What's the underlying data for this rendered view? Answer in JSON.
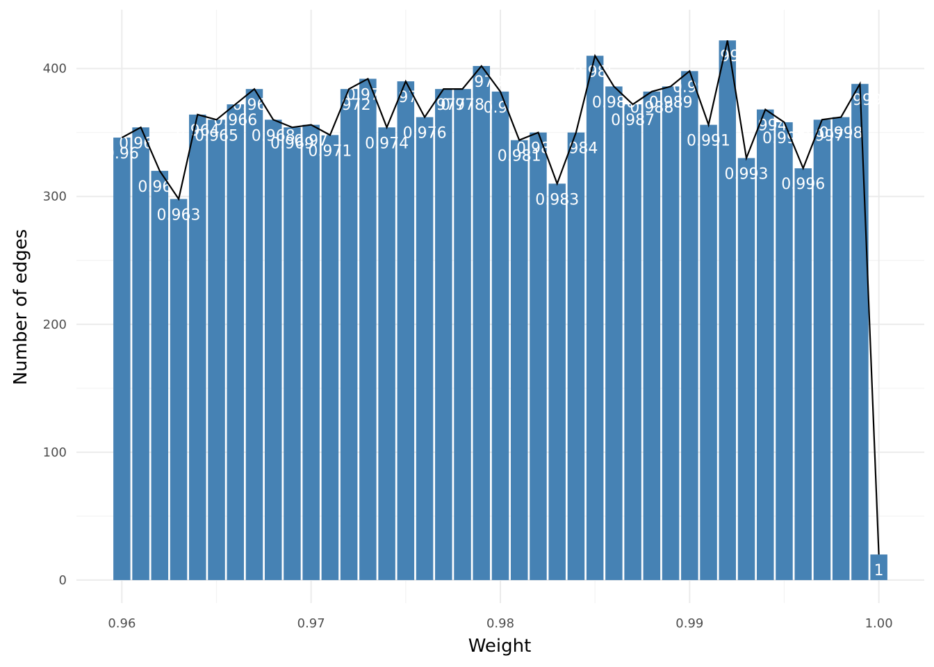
{
  "chart_data": {
    "type": "bar",
    "title": "",
    "xlabel": "Weight",
    "ylabel": "Number of edges",
    "xlim": [
      0.9576,
      1.0024
    ],
    "ylim": [
      -18,
      446
    ],
    "x_ticks": [
      0.96,
      0.97,
      0.98,
      0.99,
      1.0
    ],
    "x_tick_labels": [
      "0.96",
      "0.97",
      "0.98",
      "0.99",
      "1.00"
    ],
    "y_ticks": [
      0,
      100,
      200,
      300,
      400
    ],
    "y_tick_labels": [
      "0",
      "100",
      "200",
      "300",
      "400"
    ],
    "grid": true,
    "bar_color": "#4682b4",
    "line_color": "#000000",
    "x": [
      0.96,
      0.961,
      0.962,
      0.963,
      0.964,
      0.965,
      0.966,
      0.967,
      0.968,
      0.969,
      0.97,
      0.971,
      0.972,
      0.973,
      0.974,
      0.975,
      0.976,
      0.977,
      0.978,
      0.979,
      0.98,
      0.981,
      0.982,
      0.983,
      0.984,
      0.985,
      0.986,
      0.987,
      0.988,
      0.989,
      0.99,
      0.991,
      0.992,
      0.993,
      0.994,
      0.995,
      0.996,
      0.997,
      0.998,
      0.999,
      1.0
    ],
    "values": [
      346,
      354,
      320,
      298,
      364,
      360,
      372,
      384,
      360,
      354,
      356,
      348,
      384,
      392,
      354,
      390,
      362,
      384,
      384,
      402,
      382,
      344,
      350,
      310,
      350,
      410,
      386,
      372,
      382,
      386,
      398,
      356,
      422,
      330,
      368,
      358,
      322,
      360,
      362,
      388,
      20
    ],
    "labels": [
      "0.96",
      "0.961",
      "0.962",
      "0.963",
      "0.964",
      "0.965",
      "0.966",
      "0.967",
      "0.968",
      "0.969",
      "0.97",
      "0.971",
      "0.972",
      "0.973",
      "0.974",
      "0.975",
      "0.976",
      "0.977",
      "0.978",
      "0.979",
      "0.98",
      "0.981",
      "0.982",
      "0.983",
      "0.984",
      "0.985",
      "0.986",
      "0.987",
      "0.988",
      "0.989",
      "0.99",
      "0.991",
      "0.992",
      "0.993",
      "0.994",
      "0.995",
      "0.996",
      "0.997",
      "0.998",
      "0.999",
      "1"
    ]
  }
}
